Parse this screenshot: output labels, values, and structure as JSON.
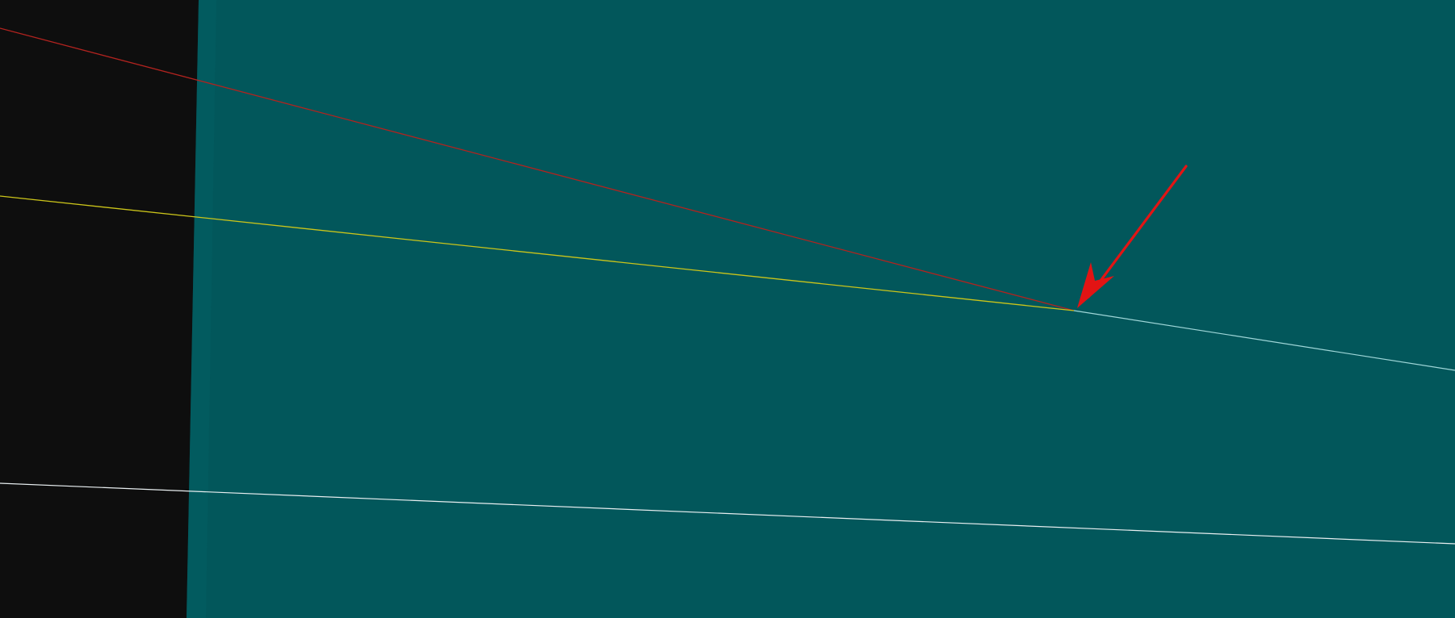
{
  "canvas": {
    "dark_panel_color": "#0e0e0e",
    "teal_panel_color": "#02575b",
    "teal_panel_edge_color": "#035f63"
  },
  "lines": [
    {
      "name": "red-line",
      "color": "#b2231f"
    },
    {
      "name": "yellow-line",
      "color": "#ccc51a"
    },
    {
      "name": "cyan-line",
      "color": "#9fd6d8"
    },
    {
      "name": "white-line",
      "color": "#e8eef0"
    }
  ],
  "annotation": {
    "name": "red-arrow-annotation",
    "color": "#e31414",
    "icon": "arrow-pointer-icon"
  }
}
